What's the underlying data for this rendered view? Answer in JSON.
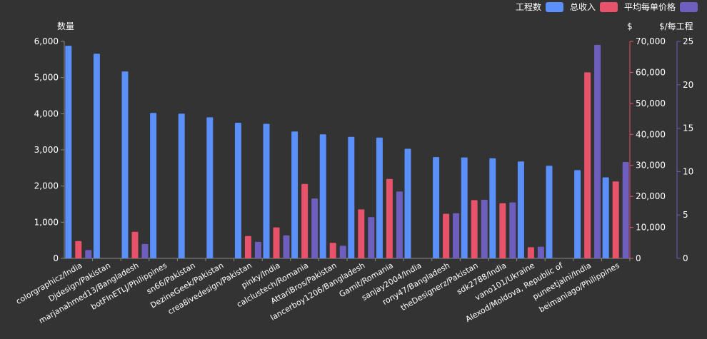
{
  "chart_data": {
    "type": "bar",
    "categories": [
      "colorgraphicz/India",
      "Djdesign/Pakistan",
      "marjanahmed13/Bangladesh",
      "botFInETLJ/Philippines",
      "sn66/Pakistan",
      "DezineGeek/Pakistan",
      "crea8ivedesign/Pakistan",
      "pinky/India",
      "calclustech/Romania",
      "AttariBros/Pakistan",
      "lancerboy1206/Bangladesh",
      "Gamit/Romania",
      "sanjay2004/India",
      "rony47/Bangladesh",
      "theDesignerz/Pakistan",
      "sdk2788/India",
      "vano101/Ukraine",
      "Alexod/Moldova, Republic of",
      "puneetjalni/India",
      "beimaniago/Philippines"
    ],
    "series": [
      {
        "name": "工程数",
        "color": "#5B8FF9",
        "axis": "left",
        "values": [
          5880,
          5660,
          5170,
          4020,
          4000,
          3900,
          3750,
          3720,
          3510,
          3430,
          3360,
          3340,
          3030,
          2800,
          2790,
          2770,
          2680,
          2560,
          2440,
          2240
        ]
      },
      {
        "name": "总收入",
        "color": "#E8526A",
        "axis": "right",
        "values": [
          5600,
          0,
          8600,
          0,
          0,
          0,
          7200,
          10000,
          24000,
          5000,
          15800,
          25600,
          0,
          14400,
          18800,
          17800,
          3600,
          0,
          60000,
          24800
        ]
      },
      {
        "name": "平均每单价格",
        "color": "#6E5FBE",
        "axis": "right2",
        "values": [
          0.95,
          0,
          1.65,
          0,
          0,
          0,
          1.9,
          2.65,
          6.9,
          1.45,
          4.75,
          7.7,
          0,
          5.2,
          6.75,
          6.45,
          1.35,
          0,
          24.6,
          11.1
        ]
      }
    ],
    "axes": {
      "left": {
        "title": "数量",
        "ylim": [
          0,
          6000
        ],
        "ticks": [
          "0",
          "1,000",
          "2,000",
          "3,000",
          "4,000",
          "5,000",
          "6,000"
        ]
      },
      "right": {
        "title": "$",
        "ylim": [
          0,
          70000
        ],
        "ticks": [
          "0",
          "10,000",
          "20,000",
          "30,000",
          "40,000",
          "50,000",
          "60,000",
          "70,000"
        ]
      },
      "right2": {
        "title": "$/每工程",
        "ylim": [
          0,
          25
        ],
        "ticks": [
          "0",
          "5",
          "10",
          "15",
          "20",
          "25"
        ]
      }
    },
    "legend": {
      "placement": "top-right",
      "items": [
        "工程数",
        "总收入",
        "平均每单价格"
      ]
    },
    "grid": false
  },
  "colors": {
    "background": "#333333",
    "text": "#FFFFFF",
    "axis_left": "#888888",
    "axis_right": "#E8526A",
    "axis_right2": "#6E5FBE"
  }
}
